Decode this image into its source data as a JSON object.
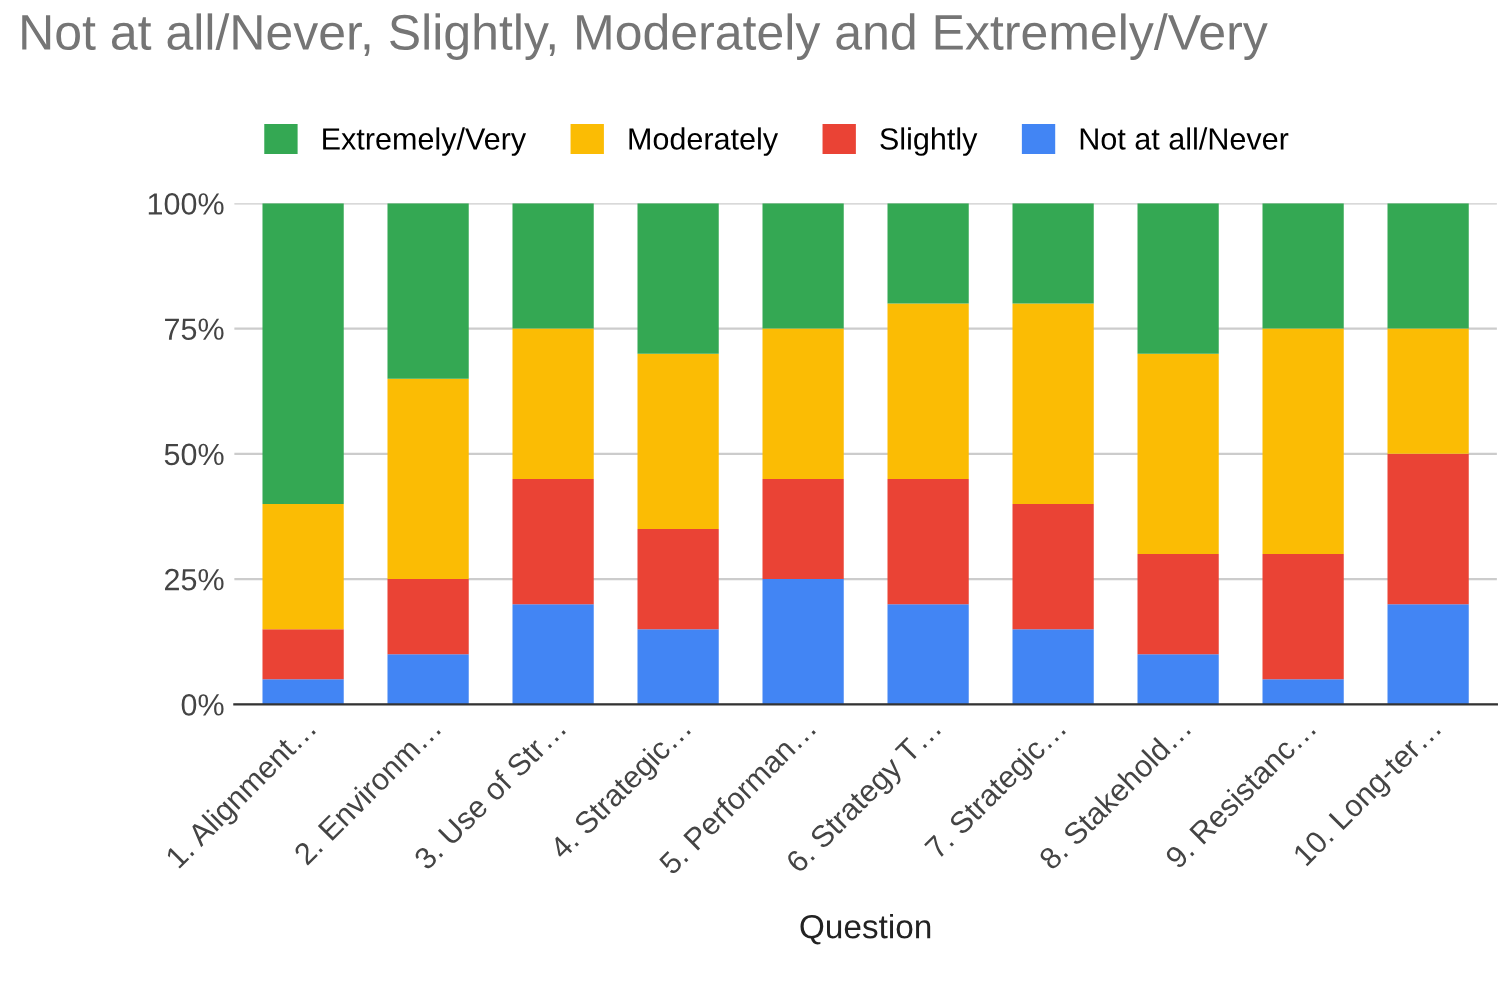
{
  "chart_data": {
    "type": "bar",
    "stacked": true,
    "title": "Not at all/Never, Slightly, Moderately and Extremely/Very",
    "xlabel": "Question",
    "categories": [
      "1. Alignment…",
      "2. Environm…",
      "3. Use of Str…",
      "4. Strategic…",
      "5. Performan…",
      "6. Strategy T…",
      "7. Strategic…",
      "8. Stakehold…",
      "9. Resistanc…",
      "10. Long-ter…"
    ],
    "series": [
      {
        "name": "Not at all/Never",
        "color": "#4285f4",
        "values": [
          5,
          10,
          20,
          15,
          25,
          20,
          15,
          10,
          5,
          20
        ]
      },
      {
        "name": "Slightly",
        "color": "#ea4335",
        "values": [
          10,
          15,
          25,
          20,
          20,
          25,
          25,
          20,
          25,
          30
        ]
      },
      {
        "name": "Moderately",
        "color": "#fbbc04",
        "values": [
          25,
          40,
          30,
          35,
          30,
          35,
          40,
          40,
          45,
          25
        ]
      },
      {
        "name": "Extremely/Very",
        "color": "#34a853",
        "values": [
          60,
          35,
          25,
          30,
          25,
          20,
          20,
          30,
          25,
          25
        ]
      }
    ],
    "ylim": [
      0,
      100
    ],
    "yticks": [
      {
        "value": 0,
        "label": "0%"
      },
      {
        "value": 25,
        "label": "25%"
      },
      {
        "value": 50,
        "label": "50%"
      },
      {
        "value": 75,
        "label": "75%"
      },
      {
        "value": 100,
        "label": "100%"
      }
    ],
    "grid": "y",
    "legend": "top"
  }
}
